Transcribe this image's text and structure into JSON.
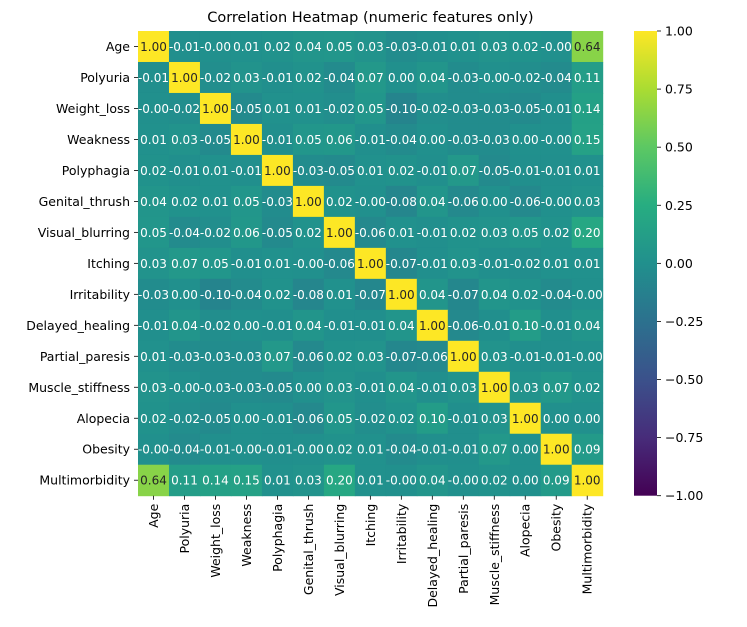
{
  "chart_data": {
    "type": "heatmap",
    "title": "Correlation Heatmap (numeric features only)",
    "xlabel": "",
    "ylabel": "",
    "colormap": "viridis",
    "vmin": -1.0,
    "vmax": 1.0,
    "value_format": "2 decimals",
    "colorbar": {
      "placement": "right",
      "ticks": [
        1.0,
        0.75,
        0.5,
        0.25,
        0.0,
        -0.25,
        -0.5,
        -0.75,
        -1.0
      ],
      "tick_labels": [
        "1.00",
        "0.75",
        "0.50",
        "0.25",
        "0.00",
        "−0.25",
        "−0.50",
        "−0.75",
        "−1.00"
      ]
    },
    "labels": [
      "Age",
      "Polyuria",
      "Weight_loss",
      "Weakness",
      "Polyphagia",
      "Genital_thrush",
      "Visual_blurring",
      "Itching",
      "Irritability",
      "Delayed_healing",
      "Partial_paresis",
      "Muscle_stiffness",
      "Alopecia",
      "Obesity",
      "Multimorbidity"
    ],
    "matrix": [
      [
        1.0,
        -0.01,
        -0.0,
        0.01,
        0.02,
        0.04,
        0.05,
        0.03,
        -0.03,
        -0.01,
        0.01,
        0.03,
        0.02,
        -0.0,
        0.64
      ],
      [
        -0.01,
        1.0,
        -0.02,
        0.03,
        -0.01,
        0.02,
        -0.04,
        0.07,
        0.0,
        0.04,
        -0.03,
        -0.0,
        -0.02,
        -0.04,
        0.11
      ],
      [
        -0.0,
        -0.02,
        1.0,
        -0.05,
        0.01,
        0.01,
        -0.02,
        0.05,
        -0.1,
        -0.02,
        -0.03,
        -0.03,
        -0.05,
        -0.01,
        0.14
      ],
      [
        0.01,
        0.03,
        -0.05,
        1.0,
        -0.01,
        0.05,
        0.06,
        -0.01,
        -0.04,
        0.0,
        -0.03,
        -0.03,
        0.0,
        -0.0,
        0.15
      ],
      [
        0.02,
        -0.01,
        0.01,
        -0.01,
        1.0,
        -0.03,
        -0.05,
        0.01,
        0.02,
        -0.01,
        0.07,
        -0.05,
        -0.01,
        -0.01,
        0.01
      ],
      [
        0.04,
        0.02,
        0.01,
        0.05,
        -0.03,
        1.0,
        0.02,
        -0.0,
        -0.08,
        0.04,
        -0.06,
        0.0,
        -0.06,
        -0.0,
        0.03
      ],
      [
        0.05,
        -0.04,
        -0.02,
        0.06,
        -0.05,
        0.02,
        1.0,
        -0.06,
        0.01,
        -0.01,
        0.02,
        0.03,
        0.05,
        0.02,
        0.2
      ],
      [
        0.03,
        0.07,
        0.05,
        -0.01,
        0.01,
        -0.0,
        -0.06,
        1.0,
        -0.07,
        -0.01,
        0.03,
        -0.01,
        -0.02,
        0.01,
        0.01
      ],
      [
        -0.03,
        0.0,
        -0.1,
        -0.04,
        0.02,
        -0.08,
        0.01,
        -0.07,
        1.0,
        0.04,
        -0.07,
        0.04,
        0.02,
        -0.04,
        -0.0
      ],
      [
        -0.01,
        0.04,
        -0.02,
        0.0,
        -0.01,
        0.04,
        -0.01,
        -0.01,
        0.04,
        1.0,
        -0.06,
        -0.01,
        0.1,
        -0.01,
        0.04
      ],
      [
        0.01,
        -0.03,
        -0.03,
        -0.03,
        0.07,
        -0.06,
        0.02,
        0.03,
        -0.07,
        -0.06,
        1.0,
        0.03,
        -0.01,
        -0.01,
        -0.0
      ],
      [
        0.03,
        -0.0,
        -0.03,
        -0.03,
        -0.05,
        0.0,
        0.03,
        -0.01,
        0.04,
        -0.01,
        0.03,
        1.0,
        0.03,
        0.07,
        0.02
      ],
      [
        0.02,
        -0.02,
        -0.05,
        0.0,
        -0.01,
        -0.06,
        0.05,
        -0.02,
        0.02,
        0.1,
        -0.01,
        0.03,
        1.0,
        0.0,
        0.0
      ],
      [
        -0.0,
        -0.04,
        -0.01,
        -0.0,
        -0.01,
        -0.0,
        0.02,
        0.01,
        -0.04,
        -0.01,
        -0.01,
        0.07,
        0.0,
        1.0,
        0.09
      ],
      [
        0.64,
        0.11,
        0.14,
        0.15,
        0.01,
        0.03,
        0.2,
        0.01,
        -0.0,
        0.04,
        -0.0,
        0.02,
        0.0,
        0.09,
        1.0
      ]
    ]
  }
}
